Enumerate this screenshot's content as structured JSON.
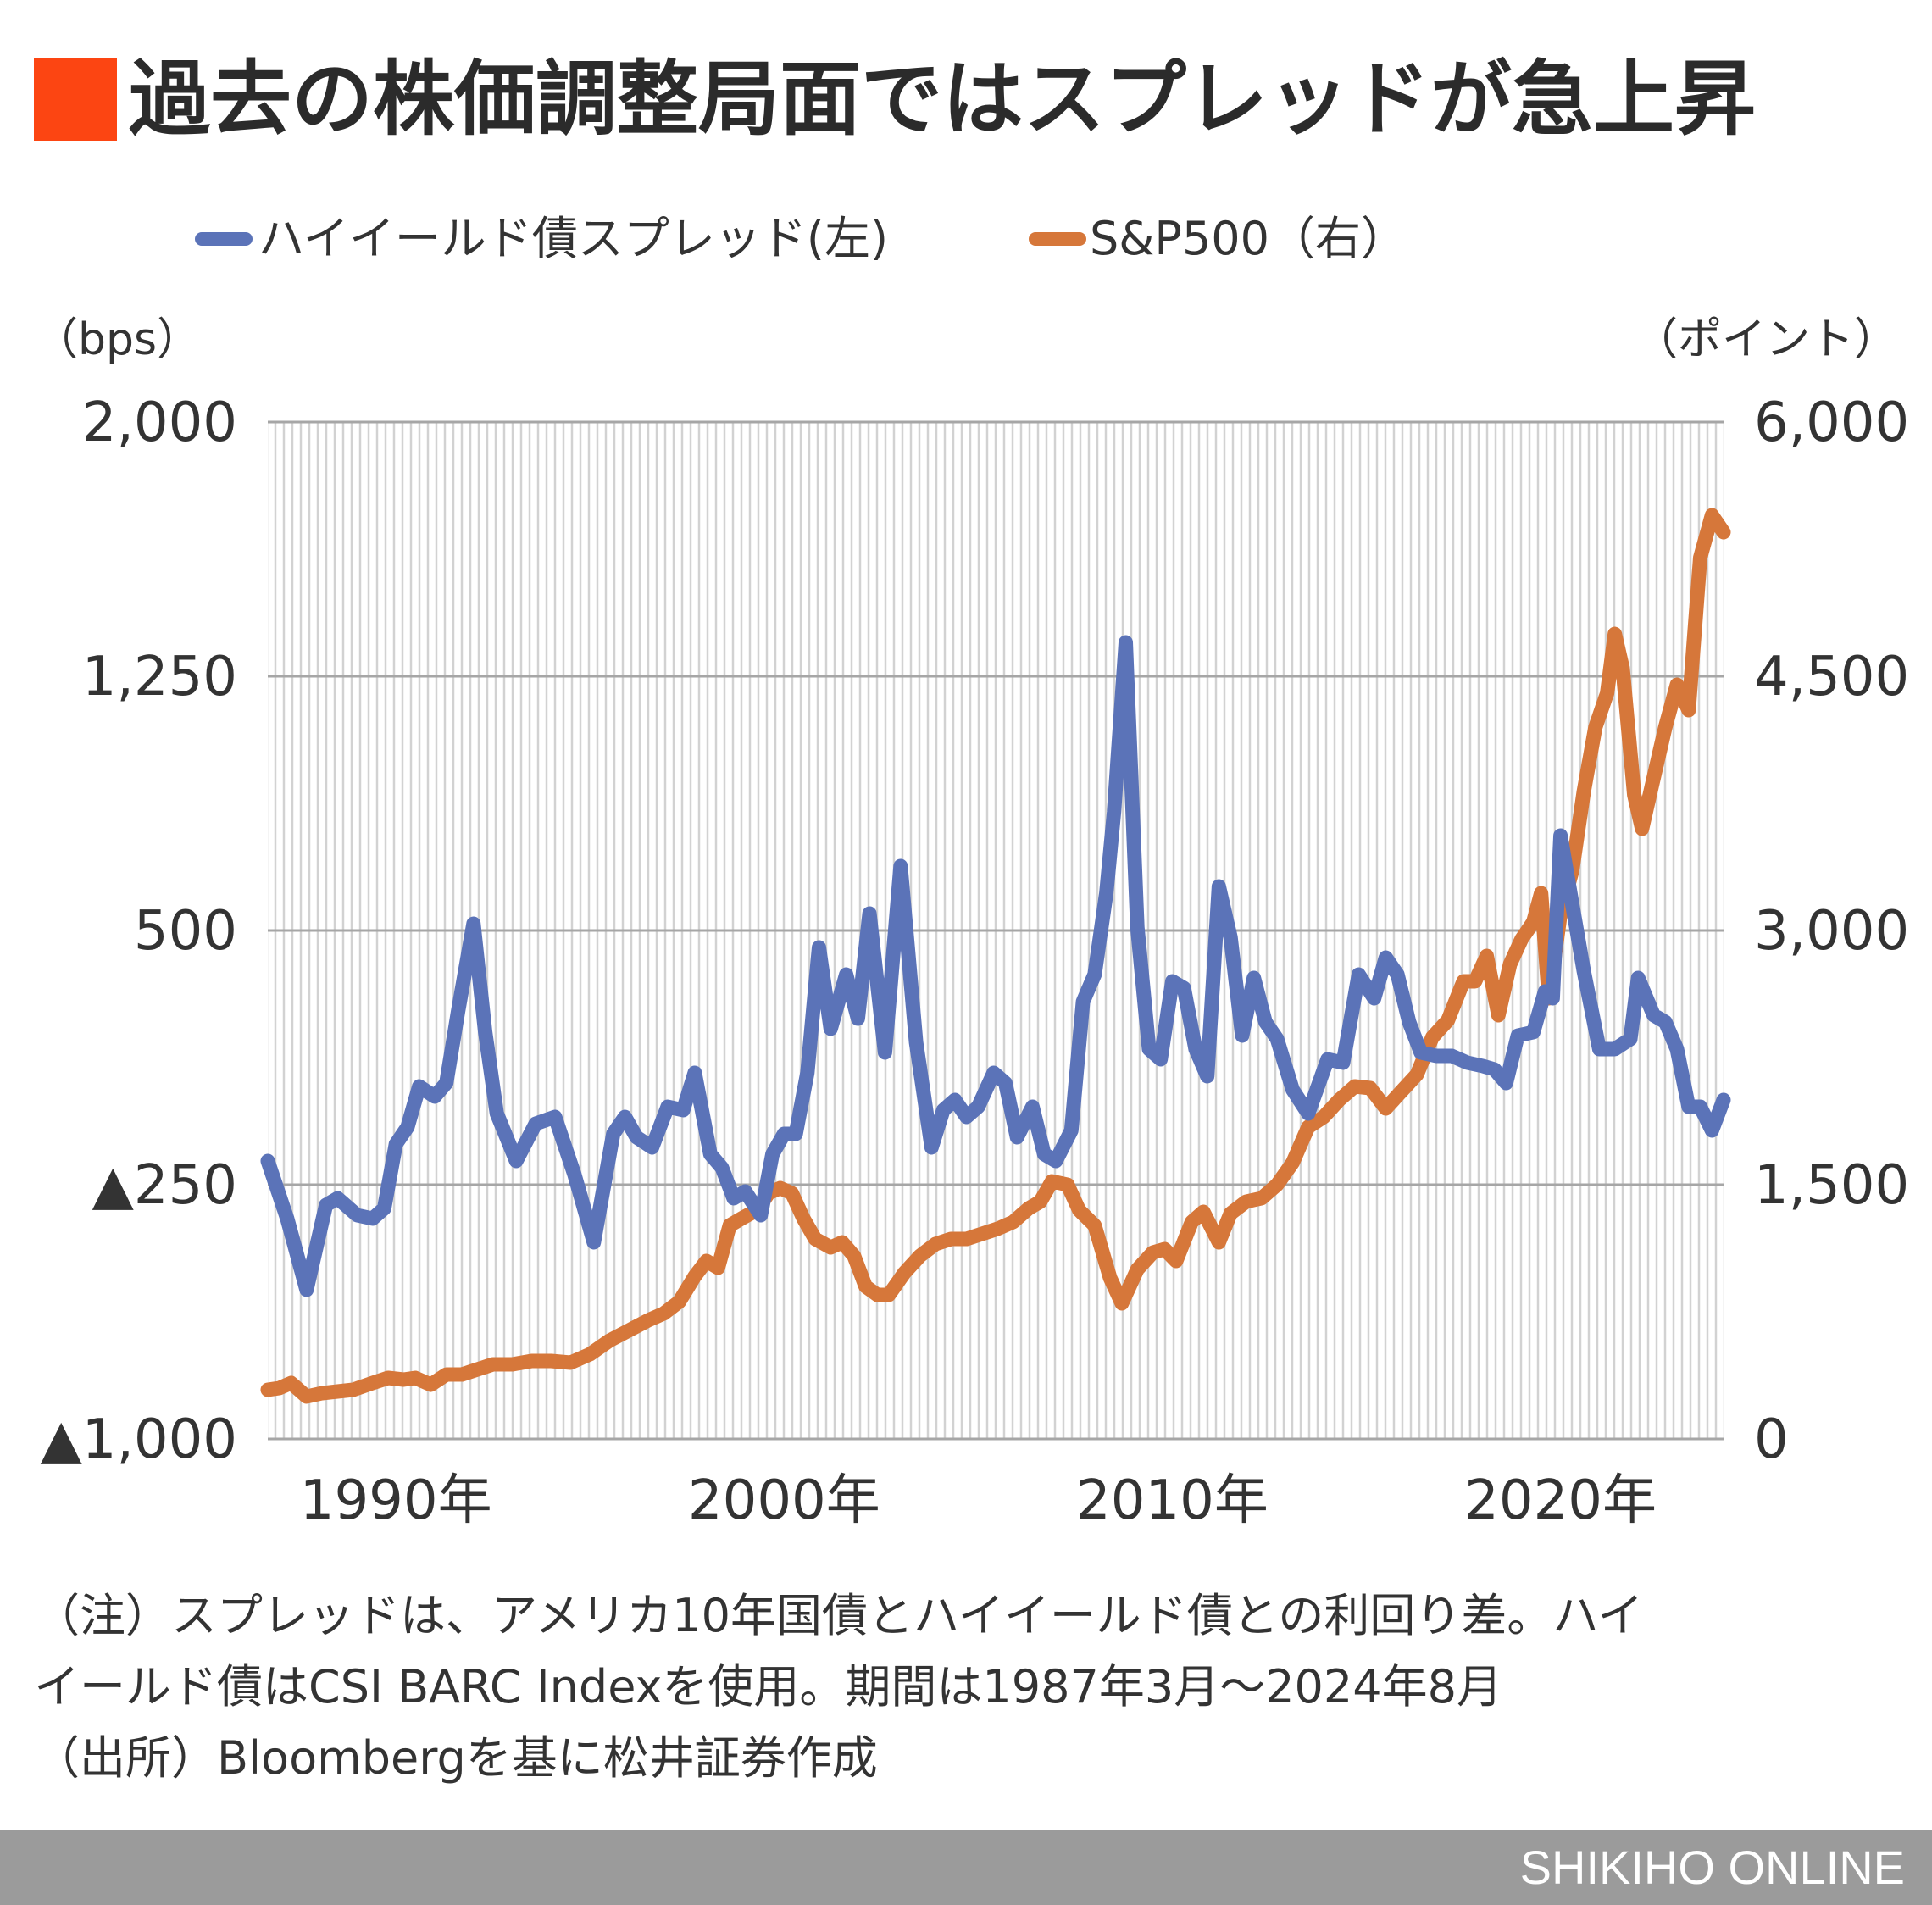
{
  "title": "過去の株価調整局面ではスプレッドが急上昇",
  "colors": {
    "accent": "#fc4512",
    "spread": "#5b73b8",
    "sp500": "#d6773a",
    "footer": "#9b9b9b"
  },
  "notes": [
    "（注）スプレッドは、アメリカ10年国債とハイイールド債との利回り差。ハイ",
    "イールド債はCSI BARC Indexを使用。期間は1987年3月～2024年8月",
    "（出所）Bloombergを基に松井証券作成"
  ],
  "footer": {
    "brand": "SHIKIHO ONLINE"
  },
  "chart_data": {
    "type": "line",
    "legend": [
      "ハイイールド債スプレッド(左)",
      "S&P500（右）"
    ],
    "legend_position": "top",
    "grid": true,
    "y_left": {
      "unit_label": "（bps）",
      "range": [
        -1000,
        2000
      ],
      "ticks": [
        -1000,
        -250,
        500,
        1250,
        2000
      ],
      "tick_labels": [
        "▲1,000",
        "▲250",
        "500",
        "1,250",
        "2,000"
      ]
    },
    "y_right": {
      "unit_label": "（ポイント）",
      "range": [
        0,
        6000
      ],
      "ticks": [
        0,
        1500,
        3000,
        4500,
        6000
      ],
      "tick_labels": [
        "0",
        "1,500",
        "3,000",
        "4,500",
        "6,000"
      ]
    },
    "x_axis": {
      "range": [
        1987.2,
        2024.7
      ],
      "ticks": [
        1990.5,
        2000.5,
        2010.5,
        2020.5
      ],
      "tick_labels": [
        "1990年",
        "2000年",
        "2010年",
        "2020年"
      ]
    },
    "series": [
      {
        "name": "ハイイールド債スプレッド(左)",
        "axis": "left",
        "x": [
          1987.2,
          1987.7,
          1988.2,
          1988.7,
          1989.0,
          1989.5,
          1989.9,
          1990.2,
          1990.5,
          1990.8,
          1991.1,
          1991.5,
          1991.8,
          1992.1,
          1992.5,
          1992.8,
          1993.1,
          1993.6,
          1994.1,
          1994.6,
          1995.1,
          1995.6,
          1996.1,
          1996.4,
          1996.7,
          1997.1,
          1997.5,
          1997.9,
          1998.2,
          1998.6,
          1998.9,
          1999.2,
          1999.5,
          1999.9,
          2000.2,
          2000.5,
          2000.8,
          2001.1,
          2001.4,
          2001.7,
          2002.1,
          2002.4,
          2002.7,
          2003.1,
          2003.5,
          2003.9,
          2004.3,
          2004.6,
          2004.9,
          2005.2,
          2005.5,
          2005.9,
          2006.2,
          2006.5,
          2006.9,
          2007.2,
          2007.5,
          2007.9,
          2008.2,
          2008.5,
          2008.8,
          2009.0,
          2009.3,
          2009.6,
          2009.9,
          2010.2,
          2010.5,
          2010.8,
          2011.1,
          2011.4,
          2011.7,
          2012.0,
          2012.3,
          2012.6,
          2012.9,
          2013.2,
          2013.6,
          2014.0,
          2014.5,
          2014.9,
          2015.3,
          2015.7,
          2016.0,
          2016.3,
          2016.6,
          2016.9,
          2017.3,
          2017.7,
          2018.1,
          2018.5,
          2018.8,
          2019.1,
          2019.4,
          2019.8,
          2020.1,
          2020.3,
          2020.5,
          2020.8,
          2021.1,
          2021.5,
          2021.9,
          2022.3,
          2022.5,
          2022.9,
          2023.2,
          2023.5,
          2023.8,
          2024.1,
          2024.4,
          2024.7
        ],
        "values": [
          -180,
          -350,
          -560,
          -310,
          -290,
          -340,
          -350,
          -320,
          -130,
          -80,
          40,
          10,
          50,
          260,
          520,
          200,
          -40,
          -180,
          -70,
          -50,
          -220,
          -420,
          -100,
          -50,
          -110,
          -140,
          -20,
          -30,
          80,
          -160,
          -200,
          -290,
          -270,
          -340,
          -160,
          -100,
          -100,
          80,
          450,
          210,
          370,
          240,
          550,
          140,
          690,
          170,
          -140,
          -30,
          0,
          -50,
          -20,
          80,
          50,
          -110,
          -20,
          -160,
          -180,
          -90,
          290,
          370,
          610,
          850,
          1350,
          510,
          150,
          120,
          350,
          330,
          150,
          70,
          630,
          480,
          190,
          360,
          230,
          180,
          30,
          -40,
          120,
          110,
          370,
          300,
          420,
          370,
          230,
          140,
          130,
          130,
          110,
          100,
          90,
          50,
          190,
          200,
          320,
          300,
          780,
          580,
          380,
          150,
          150,
          180,
          360,
          250,
          230,
          150,
          -20,
          -20,
          -90,
          0
        ]
      },
      {
        "name": "S&P500（右）",
        "axis": "right",
        "x": [
          1987.2,
          1987.5,
          1987.8,
          1988.2,
          1988.6,
          1989.0,
          1989.4,
          1989.9,
          1990.3,
          1990.7,
          1991.0,
          1991.4,
          1991.8,
          1992.2,
          1992.6,
          1993.0,
          1993.5,
          1994.0,
          1994.5,
          1995.0,
          1995.5,
          1996.0,
          1996.5,
          1997.0,
          1997.4,
          1997.8,
          1998.2,
          1998.5,
          1998.8,
          1999.1,
          1999.4,
          1999.8,
          2000.1,
          2000.4,
          2000.7,
          2001.0,
          2001.3,
          2001.7,
          2002.0,
          2002.3,
          2002.6,
          2002.9,
          2003.2,
          2003.6,
          2004.0,
          2004.4,
          2004.8,
          2005.2,
          2005.6,
          2006.0,
          2006.4,
          2006.8,
          2007.1,
          2007.4,
          2007.8,
          2008.1,
          2008.5,
          2008.9,
          2009.2,
          2009.6,
          2010.0,
          2010.3,
          2010.6,
          2011.0,
          2011.3,
          2011.7,
          2012.0,
          2012.4,
          2012.8,
          2013.2,
          2013.6,
          2014.0,
          2014.4,
          2014.8,
          2015.2,
          2015.6,
          2016.0,
          2016.4,
          2016.8,
          2017.2,
          2017.6,
          2018.0,
          2018.3,
          2018.6,
          2018.9,
          2019.2,
          2019.5,
          2019.8,
          2020.0,
          2020.2,
          2020.5,
          2020.8,
          2021.1,
          2021.4,
          2021.7,
          2021.9,
          2022.1,
          2022.4,
          2022.6,
          2022.9,
          2023.2,
          2023.5,
          2023.8,
          2024.1,
          2024.4,
          2024.7
        ],
        "values": [
          290,
          300,
          330,
          250,
          270,
          280,
          290,
          330,
          360,
          350,
          360,
          320,
          380,
          380,
          410,
          440,
          440,
          460,
          460,
          450,
          500,
          580,
          640,
          700,
          740,
          810,
          960,
          1050,
          1010,
          1260,
          1300,
          1350,
          1450,
          1480,
          1450,
          1300,
          1180,
          1130,
          1160,
          1080,
          900,
          850,
          850,
          980,
          1080,
          1150,
          1180,
          1180,
          1210,
          1240,
          1280,
          1360,
          1400,
          1520,
          1500,
          1350,
          1260,
          950,
          800,
          1000,
          1100,
          1120,
          1050,
          1280,
          1340,
          1160,
          1330,
          1400,
          1420,
          1500,
          1630,
          1840,
          1900,
          2000,
          2080,
          2070,
          1950,
          2050,
          2150,
          2370,
          2470,
          2700,
          2700,
          2850,
          2500,
          2800,
          2950,
          3050,
          3220,
          2600,
          3100,
          3350,
          3820,
          4200,
          4400,
          4750,
          4550,
          3800,
          3600,
          3900,
          4200,
          4450,
          4300,
          5200,
          5450,
          5350
        ]
      }
    ]
  }
}
